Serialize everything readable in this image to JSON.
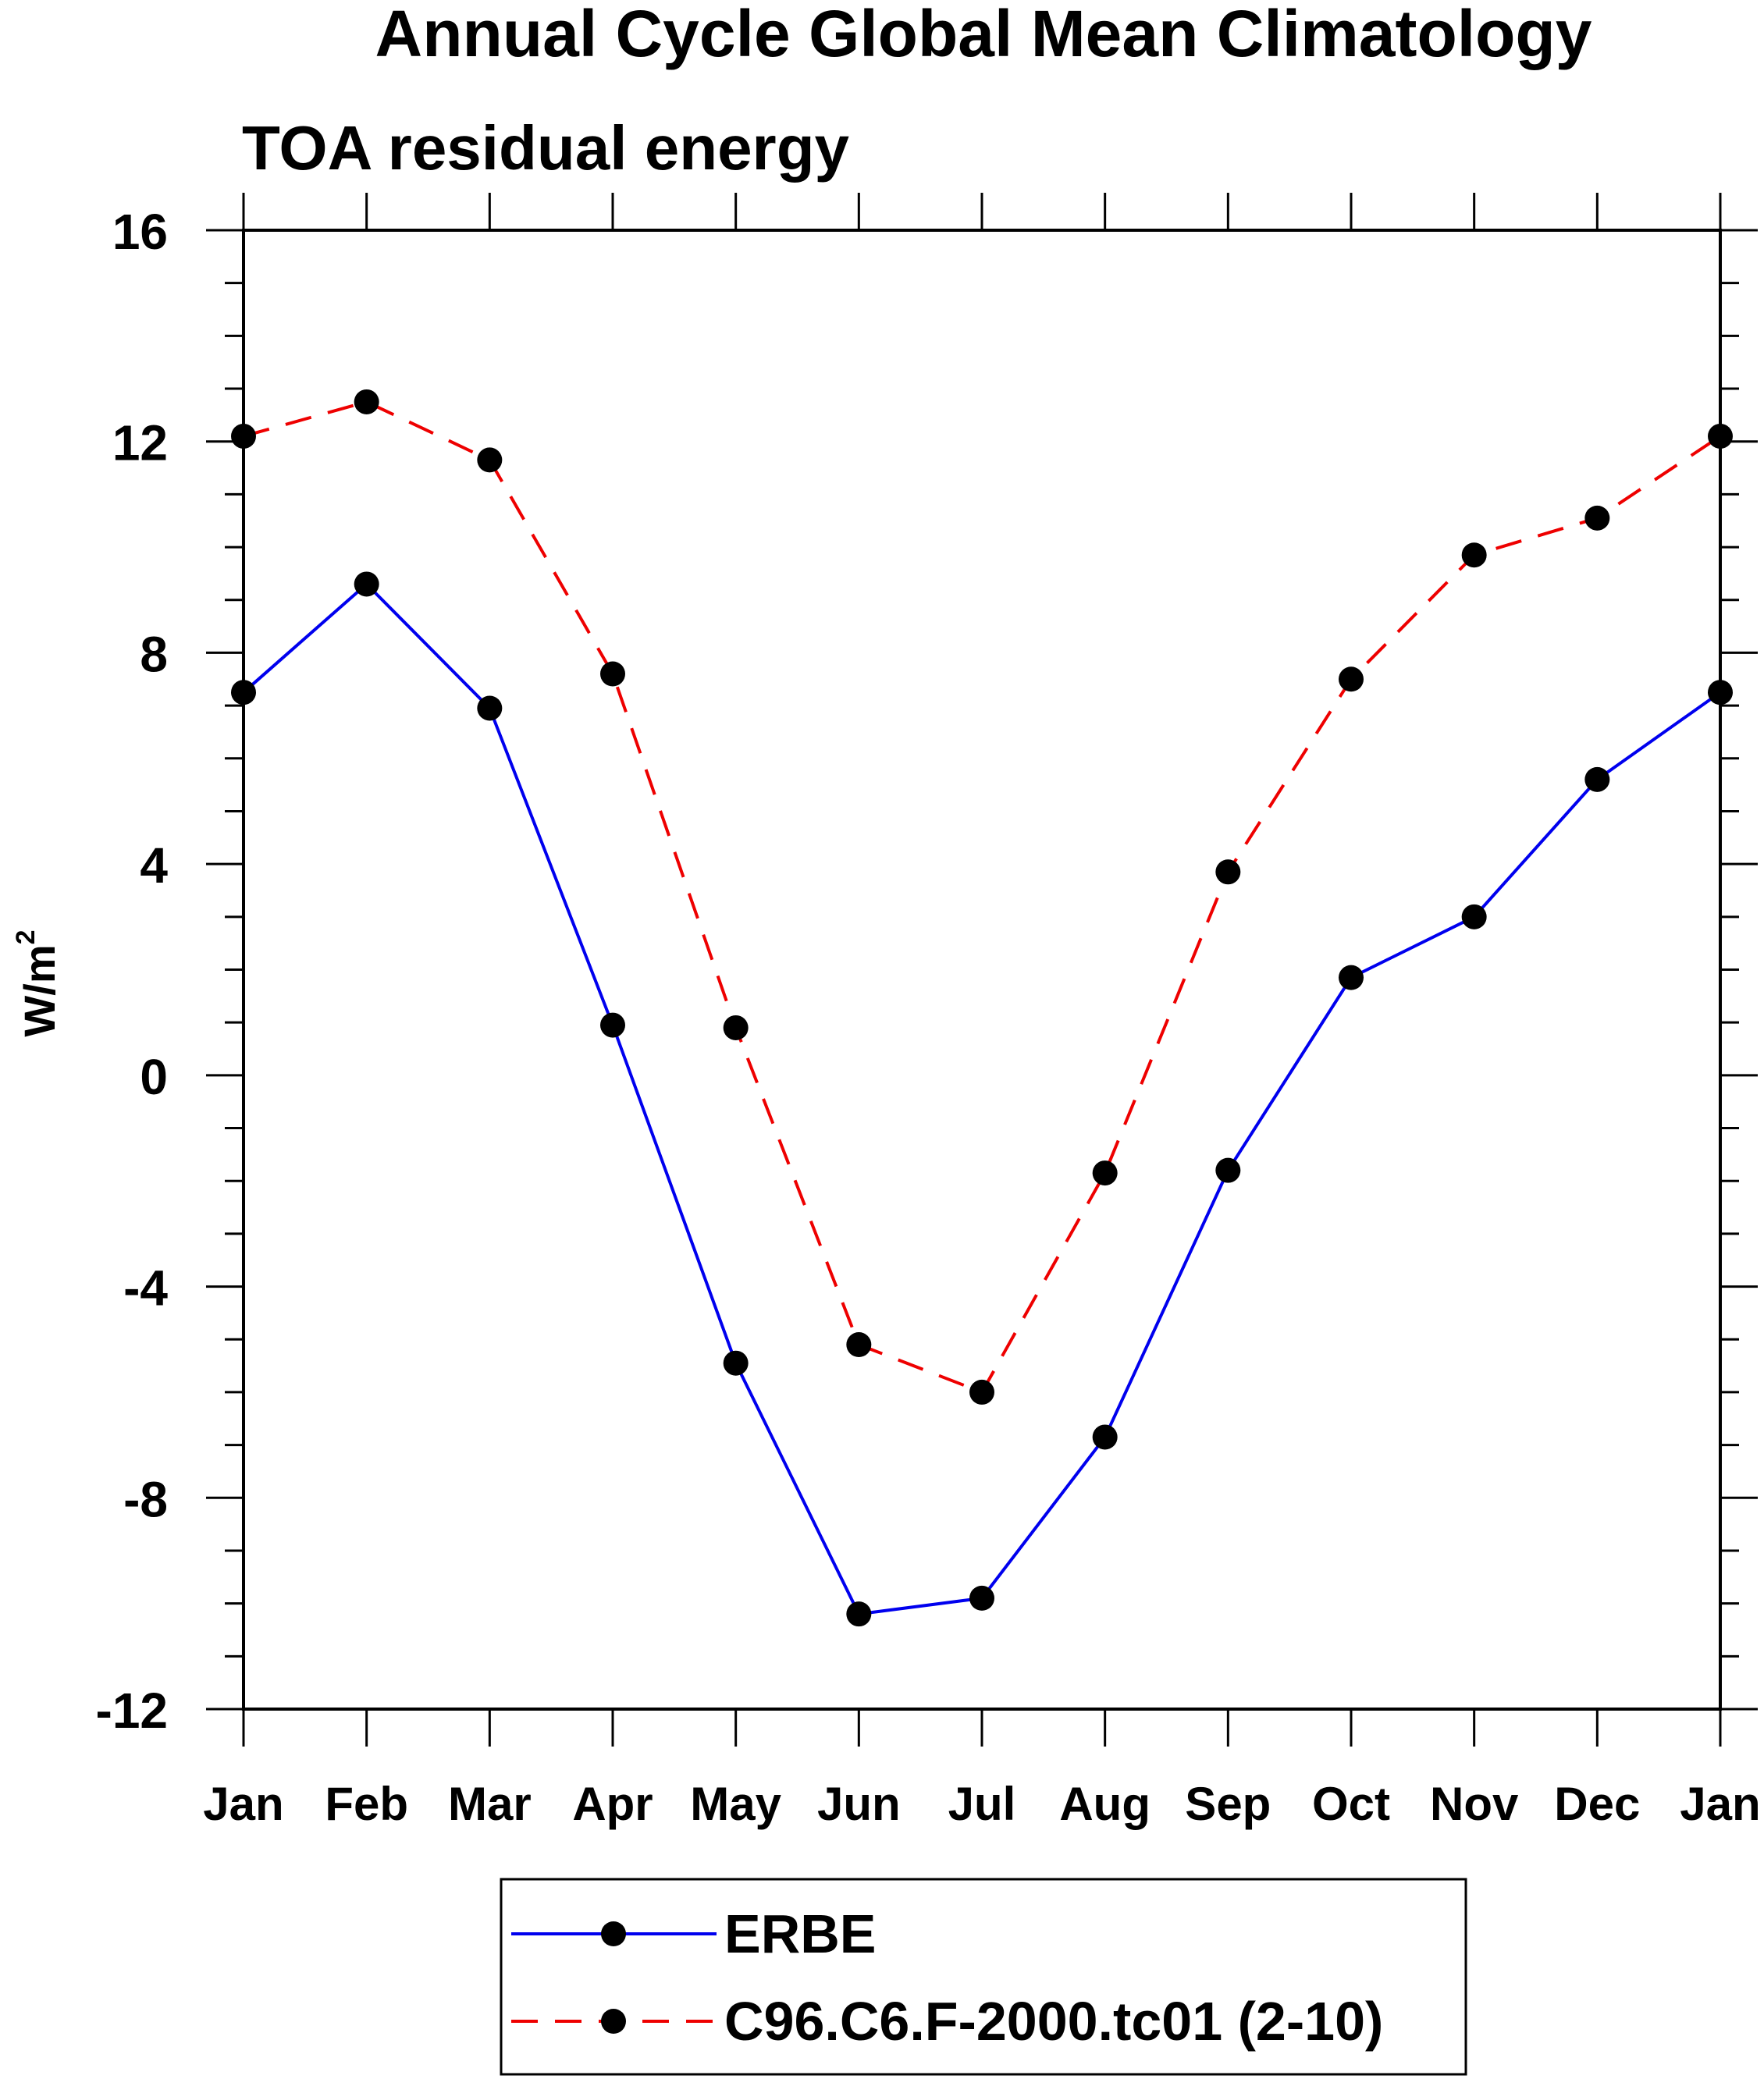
{
  "chart_data": {
    "type": "line",
    "title": "Annual Cycle Global Mean Climatology",
    "subtitle": "TOA residual energy",
    "ylabel_base": "W/m",
    "ylabel_sup": "2",
    "xlabel": "",
    "categories": [
      "Jan",
      "Feb",
      "Mar",
      "Apr",
      "May",
      "Jun",
      "Jul",
      "Aug",
      "Sep",
      "Oct",
      "Nov",
      "Dec",
      "Jan"
    ],
    "ylim": [
      -12,
      16
    ],
    "yticks": [
      -12,
      -8,
      -4,
      0,
      4,
      8,
      12,
      16
    ],
    "ytick_labels": [
      "-12",
      "-8",
      "-4",
      "0",
      "4",
      "8",
      "12",
      "16"
    ],
    "yminor_step": 1,
    "grid": false,
    "legend_position": "bottom-center",
    "series": [
      {
        "name": "ERBE",
        "color": "#0000ee",
        "dash": "solid",
        "marker": "filled-circle",
        "values": [
          7.25,
          9.3,
          6.95,
          0.95,
          -5.45,
          -10.2,
          -9.9,
          -6.85,
          -1.8,
          1.85,
          3.0,
          5.6,
          7.25
        ]
      },
      {
        "name": "C96.C6.F-2000.tc01 (2-10)",
        "color": "#ee0000",
        "dash": "dashed",
        "marker": "filled-circle",
        "values": [
          12.1,
          12.75,
          11.65,
          7.6,
          0.9,
          -5.1,
          -6.0,
          -1.85,
          3.85,
          7.5,
          9.85,
          10.55,
          12.1
        ]
      }
    ]
  }
}
